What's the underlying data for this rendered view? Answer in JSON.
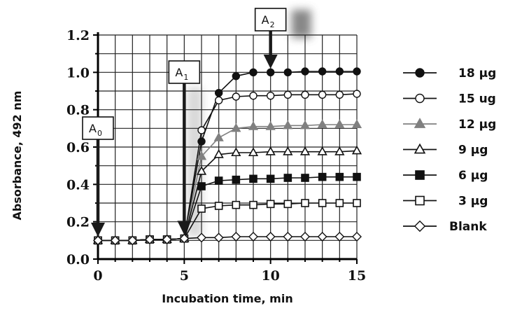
{
  "chart_data": {
    "type": "line",
    "xlabel": "Incubation time, min",
    "ylabel": "Absorbance, 492 nm",
    "xlim": [
      0,
      15
    ],
    "ylim": [
      0,
      1.2
    ],
    "x_ticks": [
      0,
      5,
      10,
      15
    ],
    "y_ticks": [
      "0.0",
      "0.2",
      "0.4",
      "0.6",
      "0.8",
      "1.0",
      "1.2"
    ],
    "grid": true,
    "legend_position": "right",
    "x": [
      0,
      1,
      2,
      3,
      4,
      5,
      6,
      7,
      8,
      9,
      10,
      11,
      12,
      13,
      14,
      15
    ],
    "series": [
      {
        "name": "18 μg",
        "marker": "circle-filled",
        "color": "#111111",
        "values": [
          0.1,
          0.1,
          0.1,
          0.105,
          0.105,
          0.11,
          0.63,
          0.89,
          0.98,
          1.0,
          1.0,
          1.0,
          1.005,
          1.005,
          1.005,
          1.005
        ]
      },
      {
        "name": "15 ug",
        "marker": "circle-open",
        "color": "#111111",
        "values": [
          0.1,
          0.1,
          0.1,
          0.105,
          0.105,
          0.11,
          0.69,
          0.85,
          0.87,
          0.875,
          0.875,
          0.88,
          0.88,
          0.88,
          0.88,
          0.885
        ]
      },
      {
        "name": "12 μg",
        "marker": "triangle-filled",
        "color": "#808080",
        "values": [
          0.1,
          0.1,
          0.1,
          0.105,
          0.105,
          0.11,
          0.55,
          0.65,
          0.7,
          0.71,
          0.71,
          0.715,
          0.715,
          0.72,
          0.72,
          0.72
        ]
      },
      {
        "name": "9 μg",
        "marker": "triangle-open",
        "color": "#111111",
        "values": [
          0.1,
          0.1,
          0.1,
          0.105,
          0.105,
          0.11,
          0.47,
          0.56,
          0.57,
          0.57,
          0.575,
          0.575,
          0.575,
          0.575,
          0.575,
          0.58
        ]
      },
      {
        "name": "6 μg",
        "marker": "square-filled",
        "color": "#111111",
        "values": [
          0.1,
          0.1,
          0.1,
          0.105,
          0.105,
          0.11,
          0.39,
          0.42,
          0.425,
          0.43,
          0.43,
          0.435,
          0.435,
          0.44,
          0.44,
          0.44
        ]
      },
      {
        "name": "3 μg",
        "marker": "square-open",
        "color": "#111111",
        "values": [
          0.1,
          0.1,
          0.1,
          0.105,
          0.105,
          0.11,
          0.27,
          0.285,
          0.29,
          0.29,
          0.295,
          0.295,
          0.3,
          0.3,
          0.3,
          0.3
        ]
      },
      {
        "name": "Blank",
        "marker": "diamond-open",
        "color": "#111111",
        "values": [
          0.1,
          0.1,
          0.1,
          0.105,
          0.105,
          0.11,
          0.115,
          0.115,
          0.12,
          0.12,
          0.12,
          0.12,
          0.12,
          0.12,
          0.12,
          0.12
        ]
      }
    ],
    "annotations": [
      {
        "label": "A",
        "subscript": "0",
        "x": 0,
        "y": 0.12
      },
      {
        "label": "A",
        "subscript": "1",
        "x": 5,
        "y": 0.13
      },
      {
        "label": "A",
        "subscript": "2",
        "x": 10,
        "y": 1.02
      }
    ]
  }
}
